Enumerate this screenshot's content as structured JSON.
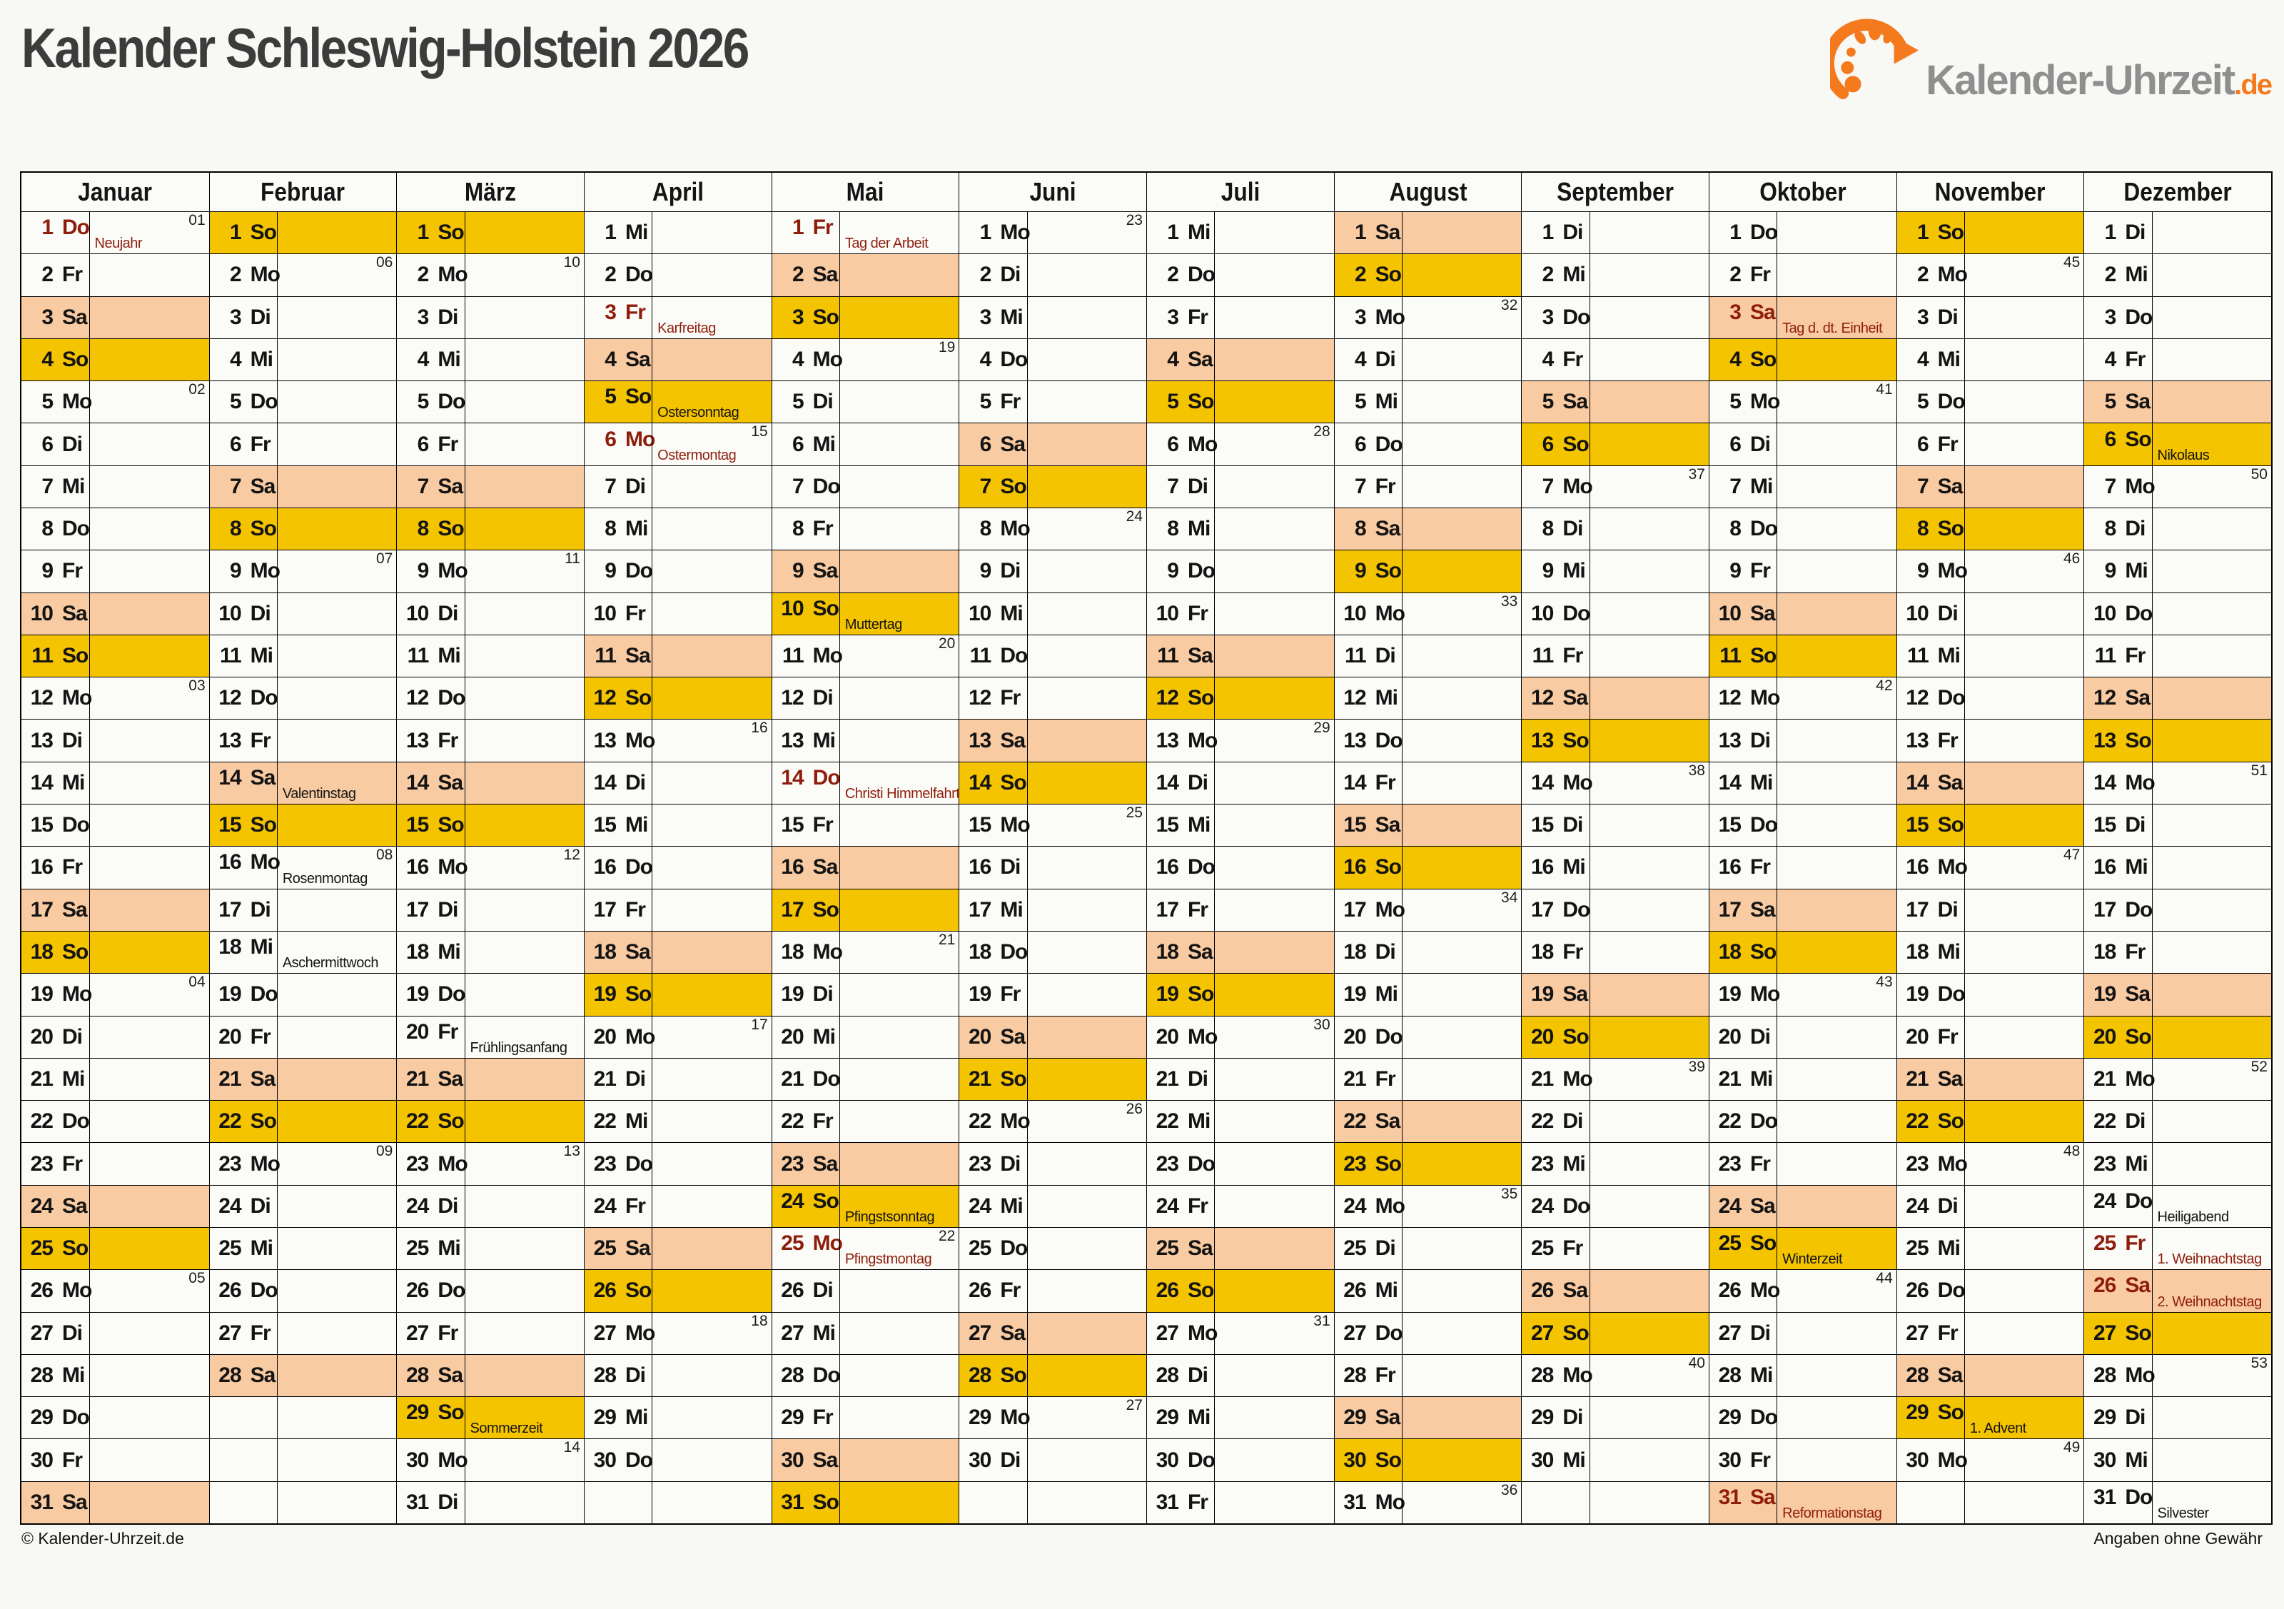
{
  "title": "Kalender Schleswig-Holstein 2026",
  "logo": {
    "text": "Kalender-Uhrzeit",
    "suffix": ".de"
  },
  "footer": {
    "left": "© Kalender-Uhrzeit.de",
    "right": "Angaben ohne Gewähr"
  },
  "colors": {
    "sunday_holiday_bg": "#F5C400",
    "saturday_bg": "#F9CBA2",
    "holiday_text": "#8F1D0B",
    "logo_orange": "#F5791D",
    "logo_gray": "#8F8F8F",
    "title_text": "#3C3C3C"
  },
  "months": [
    {
      "name": "Januar",
      "days": [
        {
          "w": "Do",
          "wk": "01",
          "hl": "Neujahr",
          "red": true
        },
        {
          "w": "Fr"
        },
        {
          "w": "Sa"
        },
        {
          "w": "So"
        },
        {
          "w": "Mo",
          "wk": "02"
        },
        {
          "w": "Di"
        },
        {
          "w": "Mi"
        },
        {
          "w": "Do"
        },
        {
          "w": "Fr"
        },
        {
          "w": "Sa"
        },
        {
          "w": "So"
        },
        {
          "w": "Mo",
          "wk": "03"
        },
        {
          "w": "Di"
        },
        {
          "w": "Mi"
        },
        {
          "w": "Do"
        },
        {
          "w": "Fr"
        },
        {
          "w": "Sa"
        },
        {
          "w": "So"
        },
        {
          "w": "Mo",
          "wk": "04"
        },
        {
          "w": "Di"
        },
        {
          "w": "Mi"
        },
        {
          "w": "Do"
        },
        {
          "w": "Fr"
        },
        {
          "w": "Sa"
        },
        {
          "w": "So"
        },
        {
          "w": "Mo",
          "wk": "05"
        },
        {
          "w": "Di"
        },
        {
          "w": "Mi"
        },
        {
          "w": "Do"
        },
        {
          "w": "Fr"
        },
        {
          "w": "Sa"
        }
      ]
    },
    {
      "name": "Februar",
      "days": [
        {
          "w": "So"
        },
        {
          "w": "Mo",
          "wk": "06"
        },
        {
          "w": "Di"
        },
        {
          "w": "Mi"
        },
        {
          "w": "Do"
        },
        {
          "w": "Fr"
        },
        {
          "w": "Sa"
        },
        {
          "w": "So"
        },
        {
          "w": "Mo",
          "wk": "07"
        },
        {
          "w": "Di"
        },
        {
          "w": "Mi"
        },
        {
          "w": "Do"
        },
        {
          "w": "Fr"
        },
        {
          "w": "Sa",
          "hl": "Valentinstag"
        },
        {
          "w": "So"
        },
        {
          "w": "Mo",
          "wk": "08",
          "hl": "Rosenmontag"
        },
        {
          "w": "Di"
        },
        {
          "w": "Mi",
          "hl": "Aschermittwoch"
        },
        {
          "w": "Do"
        },
        {
          "w": "Fr"
        },
        {
          "w": "Sa"
        },
        {
          "w": "So"
        },
        {
          "w": "Mo",
          "wk": "09"
        },
        {
          "w": "Di"
        },
        {
          "w": "Mi"
        },
        {
          "w": "Do"
        },
        {
          "w": "Fr"
        },
        {
          "w": "Sa"
        }
      ]
    },
    {
      "name": "März",
      "days": [
        {
          "w": "So"
        },
        {
          "w": "Mo",
          "wk": "10"
        },
        {
          "w": "Di"
        },
        {
          "w": "Mi"
        },
        {
          "w": "Do"
        },
        {
          "w": "Fr"
        },
        {
          "w": "Sa"
        },
        {
          "w": "So"
        },
        {
          "w": "Mo",
          "wk": "11"
        },
        {
          "w": "Di"
        },
        {
          "w": "Mi"
        },
        {
          "w": "Do"
        },
        {
          "w": "Fr"
        },
        {
          "w": "Sa"
        },
        {
          "w": "So"
        },
        {
          "w": "Mo",
          "wk": "12"
        },
        {
          "w": "Di"
        },
        {
          "w": "Mi"
        },
        {
          "w": "Do"
        },
        {
          "w": "Fr",
          "hl": "Frühlingsanfang"
        },
        {
          "w": "Sa"
        },
        {
          "w": "So"
        },
        {
          "w": "Mo",
          "wk": "13"
        },
        {
          "w": "Di"
        },
        {
          "w": "Mi"
        },
        {
          "w": "Do"
        },
        {
          "w": "Fr"
        },
        {
          "w": "Sa"
        },
        {
          "w": "So",
          "hl": "Sommerzeit"
        },
        {
          "w": "Mo",
          "wk": "14"
        },
        {
          "w": "Di"
        }
      ]
    },
    {
      "name": "April",
      "days": [
        {
          "w": "Mi"
        },
        {
          "w": "Do"
        },
        {
          "w": "Fr",
          "hl": "Karfreitag",
          "red": true
        },
        {
          "w": "Sa"
        },
        {
          "w": "So",
          "hl": "Ostersonntag"
        },
        {
          "w": "Mo",
          "wk": "15",
          "hl": "Ostermontag",
          "red": true
        },
        {
          "w": "Di"
        },
        {
          "w": "Mi"
        },
        {
          "w": "Do"
        },
        {
          "w": "Fr"
        },
        {
          "w": "Sa"
        },
        {
          "w": "So"
        },
        {
          "w": "Mo",
          "wk": "16"
        },
        {
          "w": "Di"
        },
        {
          "w": "Mi"
        },
        {
          "w": "Do"
        },
        {
          "w": "Fr"
        },
        {
          "w": "Sa"
        },
        {
          "w": "So"
        },
        {
          "w": "Mo",
          "wk": "17"
        },
        {
          "w": "Di"
        },
        {
          "w": "Mi"
        },
        {
          "w": "Do"
        },
        {
          "w": "Fr"
        },
        {
          "w": "Sa"
        },
        {
          "w": "So"
        },
        {
          "w": "Mo",
          "wk": "18"
        },
        {
          "w": "Di"
        },
        {
          "w": "Mi"
        },
        {
          "w": "Do"
        }
      ]
    },
    {
      "name": "Mai",
      "days": [
        {
          "w": "Fr",
          "hl": "Tag der Arbeit",
          "red": true
        },
        {
          "w": "Sa"
        },
        {
          "w": "So"
        },
        {
          "w": "Mo",
          "wk": "19"
        },
        {
          "w": "Di"
        },
        {
          "w": "Mi"
        },
        {
          "w": "Do"
        },
        {
          "w": "Fr"
        },
        {
          "w": "Sa"
        },
        {
          "w": "So",
          "hl": "Muttertag"
        },
        {
          "w": "Mo",
          "wk": "20"
        },
        {
          "w": "Di"
        },
        {
          "w": "Mi"
        },
        {
          "w": "Do",
          "hl": "Christi Himmelfahrt",
          "red": true
        },
        {
          "w": "Fr"
        },
        {
          "w": "Sa"
        },
        {
          "w": "So"
        },
        {
          "w": "Mo",
          "wk": "21"
        },
        {
          "w": "Di"
        },
        {
          "w": "Mi"
        },
        {
          "w": "Do"
        },
        {
          "w": "Fr"
        },
        {
          "w": "Sa"
        },
        {
          "w": "So",
          "hl": "Pfingstsonntag"
        },
        {
          "w": "Mo",
          "wk": "22",
          "hl": "Pfingstmontag",
          "red": true
        },
        {
          "w": "Di"
        },
        {
          "w": "Mi"
        },
        {
          "w": "Do"
        },
        {
          "w": "Fr"
        },
        {
          "w": "Sa"
        },
        {
          "w": "So"
        }
      ]
    },
    {
      "name": "Juni",
      "days": [
        {
          "w": "Mo",
          "wk": "23"
        },
        {
          "w": "Di"
        },
        {
          "w": "Mi"
        },
        {
          "w": "Do"
        },
        {
          "w": "Fr"
        },
        {
          "w": "Sa"
        },
        {
          "w": "So"
        },
        {
          "w": "Mo",
          "wk": "24"
        },
        {
          "w": "Di"
        },
        {
          "w": "Mi"
        },
        {
          "w": "Do"
        },
        {
          "w": "Fr"
        },
        {
          "w": "Sa"
        },
        {
          "w": "So"
        },
        {
          "w": "Mo",
          "wk": "25"
        },
        {
          "w": "Di"
        },
        {
          "w": "Mi"
        },
        {
          "w": "Do"
        },
        {
          "w": "Fr"
        },
        {
          "w": "Sa"
        },
        {
          "w": "So"
        },
        {
          "w": "Mo",
          "wk": "26"
        },
        {
          "w": "Di"
        },
        {
          "w": "Mi"
        },
        {
          "w": "Do"
        },
        {
          "w": "Fr"
        },
        {
          "w": "Sa"
        },
        {
          "w": "So"
        },
        {
          "w": "Mo",
          "wk": "27"
        },
        {
          "w": "Di"
        }
      ]
    },
    {
      "name": "Juli",
      "days": [
        {
          "w": "Mi"
        },
        {
          "w": "Do"
        },
        {
          "w": "Fr"
        },
        {
          "w": "Sa"
        },
        {
          "w": "So"
        },
        {
          "w": "Mo",
          "wk": "28"
        },
        {
          "w": "Di"
        },
        {
          "w": "Mi"
        },
        {
          "w": "Do"
        },
        {
          "w": "Fr"
        },
        {
          "w": "Sa"
        },
        {
          "w": "So"
        },
        {
          "w": "Mo",
          "wk": "29"
        },
        {
          "w": "Di"
        },
        {
          "w": "Mi"
        },
        {
          "w": "Do"
        },
        {
          "w": "Fr"
        },
        {
          "w": "Sa"
        },
        {
          "w": "So"
        },
        {
          "w": "Mo",
          "wk": "30"
        },
        {
          "w": "Di"
        },
        {
          "w": "Mi"
        },
        {
          "w": "Do"
        },
        {
          "w": "Fr"
        },
        {
          "w": "Sa"
        },
        {
          "w": "So"
        },
        {
          "w": "Mo",
          "wk": "31"
        },
        {
          "w": "Di"
        },
        {
          "w": "Mi"
        },
        {
          "w": "Do"
        },
        {
          "w": "Fr"
        }
      ]
    },
    {
      "name": "August",
      "days": [
        {
          "w": "Sa"
        },
        {
          "w": "So"
        },
        {
          "w": "Mo",
          "wk": "32"
        },
        {
          "w": "Di"
        },
        {
          "w": "Mi"
        },
        {
          "w": "Do"
        },
        {
          "w": "Fr"
        },
        {
          "w": "Sa"
        },
        {
          "w": "So"
        },
        {
          "w": "Mo",
          "wk": "33"
        },
        {
          "w": "Di"
        },
        {
          "w": "Mi"
        },
        {
          "w": "Do"
        },
        {
          "w": "Fr"
        },
        {
          "w": "Sa"
        },
        {
          "w": "So"
        },
        {
          "w": "Mo",
          "wk": "34"
        },
        {
          "w": "Di"
        },
        {
          "w": "Mi"
        },
        {
          "w": "Do"
        },
        {
          "w": "Fr"
        },
        {
          "w": "Sa"
        },
        {
          "w": "So"
        },
        {
          "w": "Mo",
          "wk": "35"
        },
        {
          "w": "Di"
        },
        {
          "w": "Mi"
        },
        {
          "w": "Do"
        },
        {
          "w": "Fr"
        },
        {
          "w": "Sa"
        },
        {
          "w": "So"
        },
        {
          "w": "Mo",
          "wk": "36"
        }
      ]
    },
    {
      "name": "September",
      "days": [
        {
          "w": "Di"
        },
        {
          "w": "Mi"
        },
        {
          "w": "Do"
        },
        {
          "w": "Fr"
        },
        {
          "w": "Sa"
        },
        {
          "w": "So"
        },
        {
          "w": "Mo",
          "wk": "37"
        },
        {
          "w": "Di"
        },
        {
          "w": "Mi"
        },
        {
          "w": "Do"
        },
        {
          "w": "Fr"
        },
        {
          "w": "Sa"
        },
        {
          "w": "So"
        },
        {
          "w": "Mo",
          "wk": "38"
        },
        {
          "w": "Di"
        },
        {
          "w": "Mi"
        },
        {
          "w": "Do"
        },
        {
          "w": "Fr"
        },
        {
          "w": "Sa"
        },
        {
          "w": "So"
        },
        {
          "w": "Mo",
          "wk": "39"
        },
        {
          "w": "Di"
        },
        {
          "w": "Mi"
        },
        {
          "w": "Do"
        },
        {
          "w": "Fr"
        },
        {
          "w": "Sa"
        },
        {
          "w": "So"
        },
        {
          "w": "Mo",
          "wk": "40"
        },
        {
          "w": "Di"
        },
        {
          "w": "Mi"
        }
      ]
    },
    {
      "name": "Oktober",
      "days": [
        {
          "w": "Do"
        },
        {
          "w": "Fr"
        },
        {
          "w": "Sa",
          "hl": "Tag d. dt. Einheit",
          "red": true
        },
        {
          "w": "So"
        },
        {
          "w": "Mo",
          "wk": "41"
        },
        {
          "w": "Di"
        },
        {
          "w": "Mi"
        },
        {
          "w": "Do"
        },
        {
          "w": "Fr"
        },
        {
          "w": "Sa"
        },
        {
          "w": "So"
        },
        {
          "w": "Mo",
          "wk": "42"
        },
        {
          "w": "Di"
        },
        {
          "w": "Mi"
        },
        {
          "w": "Do"
        },
        {
          "w": "Fr"
        },
        {
          "w": "Sa"
        },
        {
          "w": "So"
        },
        {
          "w": "Mo",
          "wk": "43"
        },
        {
          "w": "Di"
        },
        {
          "w": "Mi"
        },
        {
          "w": "Do"
        },
        {
          "w": "Fr"
        },
        {
          "w": "Sa"
        },
        {
          "w": "So",
          "hl": "Winterzeit"
        },
        {
          "w": "Mo",
          "wk": "44"
        },
        {
          "w": "Di"
        },
        {
          "w": "Mi"
        },
        {
          "w": "Do"
        },
        {
          "w": "Fr"
        },
        {
          "w": "Sa",
          "hl": "Reformationstag",
          "red": true
        }
      ]
    },
    {
      "name": "November",
      "days": [
        {
          "w": "So"
        },
        {
          "w": "Mo",
          "wk": "45"
        },
        {
          "w": "Di"
        },
        {
          "w": "Mi"
        },
        {
          "w": "Do"
        },
        {
          "w": "Fr"
        },
        {
          "w": "Sa"
        },
        {
          "w": "So"
        },
        {
          "w": "Mo",
          "wk": "46"
        },
        {
          "w": "Di"
        },
        {
          "w": "Mi"
        },
        {
          "w": "Do"
        },
        {
          "w": "Fr"
        },
        {
          "w": "Sa"
        },
        {
          "w": "So"
        },
        {
          "w": "Mo",
          "wk": "47"
        },
        {
          "w": "Di"
        },
        {
          "w": "Mi"
        },
        {
          "w": "Do"
        },
        {
          "w": "Fr"
        },
        {
          "w": "Sa"
        },
        {
          "w": "So"
        },
        {
          "w": "Mo",
          "wk": "48"
        },
        {
          "w": "Di"
        },
        {
          "w": "Mi"
        },
        {
          "w": "Do"
        },
        {
          "w": "Fr"
        },
        {
          "w": "Sa"
        },
        {
          "w": "So",
          "hl": "1. Advent"
        },
        {
          "w": "Mo",
          "wk": "49"
        }
      ]
    },
    {
      "name": "Dezember",
      "days": [
        {
          "w": "Di"
        },
        {
          "w": "Mi"
        },
        {
          "w": "Do"
        },
        {
          "w": "Fr"
        },
        {
          "w": "Sa"
        },
        {
          "w": "So",
          "hl": "Nikolaus"
        },
        {
          "w": "Mo",
          "wk": "50"
        },
        {
          "w": "Di"
        },
        {
          "w": "Mi"
        },
        {
          "w": "Do"
        },
        {
          "w": "Fr"
        },
        {
          "w": "Sa"
        },
        {
          "w": "So"
        },
        {
          "w": "Mo",
          "wk": "51"
        },
        {
          "w": "Di"
        },
        {
          "w": "Mi"
        },
        {
          "w": "Do"
        },
        {
          "w": "Fr"
        },
        {
          "w": "Sa"
        },
        {
          "w": "So"
        },
        {
          "w": "Mo",
          "wk": "52"
        },
        {
          "w": "Di"
        },
        {
          "w": "Mi"
        },
        {
          "w": "Do",
          "hl": "Heiligabend"
        },
        {
          "w": "Fr",
          "hl": "1. Weihnachtstag",
          "red": true
        },
        {
          "w": "Sa",
          "hl": "2. Weihnachtstag",
          "red": true
        },
        {
          "w": "So"
        },
        {
          "w": "Mo",
          "wk": "53"
        },
        {
          "w": "Di"
        },
        {
          "w": "Mi"
        },
        {
          "w": "Do",
          "hl": "Silvester"
        }
      ]
    }
  ]
}
